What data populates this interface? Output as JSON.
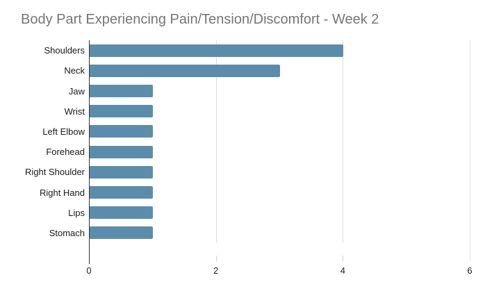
{
  "chart_data": {
    "type": "bar",
    "orientation": "horizontal",
    "title": "Body Part Experiencing Pain/Tension/Discomfort - Week 2",
    "categories": [
      "Shoulders",
      "Neck",
      "Jaw",
      "Wrist",
      "Left Elbow",
      "Forehead",
      "Right Shoulder",
      "Right Hand",
      "Lips",
      "Stomach"
    ],
    "values": [
      4,
      3,
      1,
      1,
      1,
      1,
      1,
      1,
      1,
      1
    ],
    "xlabel": "",
    "ylabel": "",
    "xlim": [
      0,
      6
    ],
    "x_ticks": [
      0,
      2,
      4,
      6
    ],
    "grid": true,
    "legend": false,
    "colors": {
      "bar": "#5a8dab",
      "title": "#757575",
      "axis_baseline": "#333333",
      "gridline": "#dedede",
      "tick_mark": "#cfcfcf",
      "category_label": "#1a1a1a",
      "tick_label": "#222222",
      "background": "#ffffff"
    }
  }
}
